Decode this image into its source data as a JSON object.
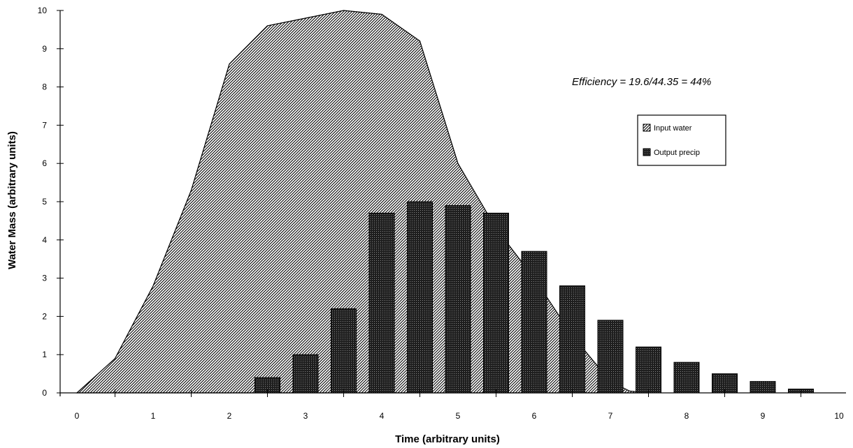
{
  "chart_data": {
    "type": "area+bar",
    "xlabel": "Time (arbitrary units)",
    "ylabel": "Water Mass (arbitrary units)",
    "xlim": [
      0,
      10
    ],
    "ylim": [
      0,
      10
    ],
    "x_ticks": [
      "0",
      "1",
      "2",
      "3",
      "4",
      "5",
      "6",
      "7",
      "8",
      "9",
      "10"
    ],
    "y_ticks": [
      "0",
      "1",
      "2",
      "3",
      "4",
      "5",
      "6",
      "7",
      "8",
      "9",
      "10"
    ],
    "grid": false,
    "annotation": "Efficiency = 19.6/44.35 = 44%",
    "legend": {
      "placement": "right",
      "entries": [
        "Input water",
        "Output precip"
      ]
    },
    "series": [
      {
        "name": "Input water",
        "type": "area",
        "pattern": "diagonal-hatch",
        "points": [
          [
            0.0,
            0.0
          ],
          [
            0.5,
            0.9
          ],
          [
            1.0,
            2.8
          ],
          [
            1.5,
            5.3
          ],
          [
            2.0,
            8.6
          ],
          [
            2.5,
            9.6
          ],
          [
            3.0,
            9.8
          ],
          [
            3.5,
            10.0
          ],
          [
            4.0,
            9.9
          ],
          [
            4.5,
            9.2
          ],
          [
            5.0,
            6.0
          ],
          [
            5.5,
            4.3
          ],
          [
            6.0,
            3.0
          ],
          [
            6.5,
            1.5
          ],
          [
            7.0,
            0.3
          ],
          [
            7.25,
            0.05
          ],
          [
            7.5,
            0.0
          ]
        ]
      },
      {
        "name": "Output precip",
        "type": "bar",
        "pattern": "dark-stipple",
        "x": [
          2.5,
          3.0,
          3.5,
          4.0,
          4.5,
          5.0,
          5.5,
          6.0,
          6.5,
          7.0,
          7.5,
          8.0,
          8.5,
          9.0,
          9.5
        ],
        "values": [
          0.4,
          1.0,
          2.2,
          4.7,
          5.0,
          4.9,
          4.7,
          3.7,
          2.8,
          1.9,
          1.2,
          0.8,
          0.5,
          0.3,
          0.1
        ]
      }
    ]
  }
}
